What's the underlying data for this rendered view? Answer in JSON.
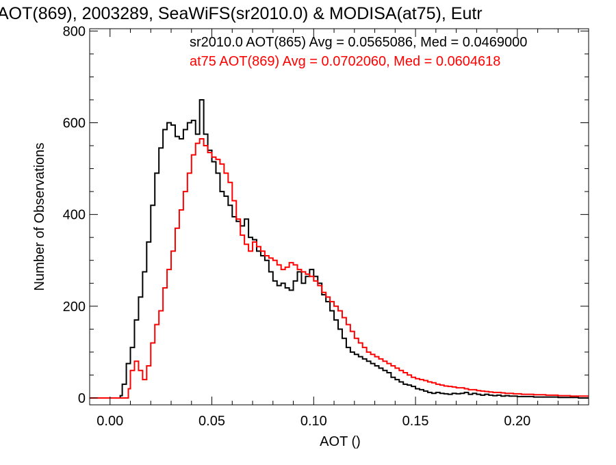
{
  "chart_data": {
    "type": "line",
    "title": "AOT(869), 2003289, SeaWiFS(sr2010.0) & MODISA(at75), Eutr",
    "xlabel": "AOT ()",
    "ylabel": "Number of Observations",
    "xlim": [
      -0.01,
      0.235
    ],
    "ylim": [
      -15,
      805
    ],
    "x_ticks": [
      0.0,
      0.05,
      0.1,
      0.15,
      0.2
    ],
    "x_tick_labels": [
      "0.00",
      "0.05",
      "0.10",
      "0.15",
      "0.20"
    ],
    "y_ticks": [
      0,
      200,
      400,
      600,
      800
    ],
    "y_tick_labels": [
      "0",
      "200",
      "400",
      "600",
      "800"
    ],
    "grid": false,
    "legend_placement": "top-right",
    "annotations": [
      {
        "text": "sr2010.0 AOT(865) Avg = 0.0565086, Med = 0.0469000",
        "color": "#000000"
      },
      {
        "text": "at75 AOT(869) Avg = 0.0702060, Med = 0.0604618",
        "color": "#ff0000"
      }
    ],
    "series": [
      {
        "color": "#000000",
        "step": "histogram",
        "points": [
          [
            -0.01,
            0
          ],
          [
            0.0,
            0
          ],
          [
            0.002,
            0
          ],
          [
            0.004,
            0
          ],
          [
            0.005,
            5
          ],
          [
            0.006,
            30
          ],
          [
            0.008,
            75
          ],
          [
            0.01,
            110
          ],
          [
            0.012,
            170
          ],
          [
            0.014,
            220
          ],
          [
            0.016,
            275
          ],
          [
            0.018,
            340
          ],
          [
            0.02,
            420
          ],
          [
            0.022,
            490
          ],
          [
            0.024,
            545
          ],
          [
            0.026,
            585
          ],
          [
            0.028,
            600
          ],
          [
            0.03,
            595
          ],
          [
            0.032,
            570
          ],
          [
            0.034,
            565
          ],
          [
            0.036,
            585
          ],
          [
            0.038,
            600
          ],
          [
            0.04,
            605
          ],
          [
            0.042,
            575
          ],
          [
            0.044,
            650
          ],
          [
            0.046,
            575
          ],
          [
            0.048,
            540
          ],
          [
            0.05,
            515
          ],
          [
            0.052,
            490
          ],
          [
            0.054,
            450
          ],
          [
            0.056,
            440
          ],
          [
            0.058,
            420
          ],
          [
            0.06,
            395
          ],
          [
            0.062,
            385
          ],
          [
            0.064,
            375
          ],
          [
            0.066,
            390
          ],
          [
            0.068,
            350
          ],
          [
            0.07,
            345
          ],
          [
            0.072,
            320
          ],
          [
            0.074,
            310
          ],
          [
            0.076,
            300
          ],
          [
            0.078,
            275
          ],
          [
            0.08,
            255
          ],
          [
            0.082,
            245
          ],
          [
            0.084,
            250
          ],
          [
            0.086,
            240
          ],
          [
            0.088,
            235
          ],
          [
            0.09,
            255
          ],
          [
            0.092,
            275
          ],
          [
            0.094,
            250
          ],
          [
            0.096,
            265
          ],
          [
            0.098,
            280
          ],
          [
            0.1,
            265
          ],
          [
            0.102,
            250
          ],
          [
            0.104,
            225
          ],
          [
            0.106,
            210
          ],
          [
            0.108,
            190
          ],
          [
            0.11,
            170
          ],
          [
            0.112,
            150
          ],
          [
            0.114,
            130
          ],
          [
            0.116,
            110
          ],
          [
            0.118,
            100
          ],
          [
            0.12,
            95
          ],
          [
            0.122,
            90
          ],
          [
            0.124,
            85
          ],
          [
            0.126,
            80
          ],
          [
            0.128,
            75
          ],
          [
            0.13,
            70
          ],
          [
            0.132,
            65
          ],
          [
            0.134,
            60
          ],
          [
            0.136,
            55
          ],
          [
            0.138,
            45
          ],
          [
            0.14,
            40
          ],
          [
            0.142,
            35
          ],
          [
            0.144,
            30
          ],
          [
            0.146,
            28
          ],
          [
            0.148,
            25
          ],
          [
            0.15,
            20
          ],
          [
            0.152,
            18
          ],
          [
            0.154,
            15
          ],
          [
            0.156,
            12
          ],
          [
            0.158,
            10
          ],
          [
            0.16,
            12
          ],
          [
            0.162,
            10
          ],
          [
            0.164,
            9
          ],
          [
            0.166,
            8
          ],
          [
            0.168,
            10
          ],
          [
            0.17,
            9
          ],
          [
            0.172,
            10
          ],
          [
            0.174,
            12
          ],
          [
            0.176,
            8
          ],
          [
            0.178,
            10
          ],
          [
            0.18,
            8
          ],
          [
            0.182,
            6
          ],
          [
            0.184,
            8
          ],
          [
            0.186,
            6
          ],
          [
            0.188,
            5
          ],
          [
            0.19,
            6
          ],
          [
            0.192,
            4
          ],
          [
            0.194,
            5
          ],
          [
            0.196,
            4
          ],
          [
            0.198,
            4
          ],
          [
            0.2,
            3
          ],
          [
            0.202,
            3
          ],
          [
            0.204,
            3
          ],
          [
            0.206,
            3
          ],
          [
            0.208,
            2
          ],
          [
            0.21,
            2
          ],
          [
            0.212,
            2
          ],
          [
            0.214,
            2
          ],
          [
            0.216,
            2
          ],
          [
            0.218,
            2
          ],
          [
            0.22,
            1
          ],
          [
            0.222,
            1
          ],
          [
            0.224,
            1
          ],
          [
            0.226,
            1
          ],
          [
            0.228,
            1
          ],
          [
            0.23,
            0
          ],
          [
            0.232,
            0
          ],
          [
            0.235,
            0
          ]
        ]
      },
      {
        "color": "#ff0000",
        "step": "histogram",
        "points": [
          [
            -0.01,
            0
          ],
          [
            0.006,
            0
          ],
          [
            0.008,
            0
          ],
          [
            0.009,
            20
          ],
          [
            0.01,
            60
          ],
          [
            0.012,
            80
          ],
          [
            0.014,
            60
          ],
          [
            0.016,
            40
          ],
          [
            0.018,
            70
          ],
          [
            0.02,
            120
          ],
          [
            0.022,
            160
          ],
          [
            0.024,
            190
          ],
          [
            0.026,
            240
          ],
          [
            0.028,
            280
          ],
          [
            0.03,
            320
          ],
          [
            0.032,
            370
          ],
          [
            0.034,
            410
          ],
          [
            0.036,
            450
          ],
          [
            0.038,
            490
          ],
          [
            0.04,
            530
          ],
          [
            0.042,
            555
          ],
          [
            0.044,
            565
          ],
          [
            0.046,
            550
          ],
          [
            0.048,
            535
          ],
          [
            0.05,
            525
          ],
          [
            0.052,
            520
          ],
          [
            0.054,
            510
          ],
          [
            0.056,
            490
          ],
          [
            0.058,
            470
          ],
          [
            0.06,
            430
          ],
          [
            0.062,
            390
          ],
          [
            0.064,
            355
          ],
          [
            0.066,
            335
          ],
          [
            0.068,
            320
          ],
          [
            0.07,
            340
          ],
          [
            0.072,
            330
          ],
          [
            0.074,
            320
          ],
          [
            0.076,
            310
          ],
          [
            0.078,
            305
          ],
          [
            0.08,
            300
          ],
          [
            0.082,
            290
          ],
          [
            0.084,
            280
          ],
          [
            0.086,
            285
          ],
          [
            0.088,
            295
          ],
          [
            0.09,
            290
          ],
          [
            0.092,
            280
          ],
          [
            0.094,
            275
          ],
          [
            0.096,
            270
          ],
          [
            0.098,
            265
          ],
          [
            0.1,
            255
          ],
          [
            0.102,
            245
          ],
          [
            0.104,
            230
          ],
          [
            0.106,
            220
          ],
          [
            0.108,
            210
          ],
          [
            0.11,
            200
          ],
          [
            0.112,
            190
          ],
          [
            0.114,
            175
          ],
          [
            0.116,
            160
          ],
          [
            0.118,
            145
          ],
          [
            0.12,
            130
          ],
          [
            0.122,
            120
          ],
          [
            0.124,
            110
          ],
          [
            0.126,
            100
          ],
          [
            0.128,
            95
          ],
          [
            0.13,
            90
          ],
          [
            0.132,
            85
          ],
          [
            0.134,
            80
          ],
          [
            0.136,
            75
          ],
          [
            0.138,
            70
          ],
          [
            0.14,
            65
          ],
          [
            0.142,
            60
          ],
          [
            0.144,
            55
          ],
          [
            0.146,
            50
          ],
          [
            0.148,
            45
          ],
          [
            0.15,
            42
          ],
          [
            0.152,
            40
          ],
          [
            0.154,
            38
          ],
          [
            0.156,
            35
          ],
          [
            0.158,
            33
          ],
          [
            0.16,
            30
          ],
          [
            0.162,
            28
          ],
          [
            0.164,
            26
          ],
          [
            0.166,
            25
          ],
          [
            0.168,
            24
          ],
          [
            0.17,
            22
          ],
          [
            0.172,
            22
          ],
          [
            0.174,
            20
          ],
          [
            0.176,
            18
          ],
          [
            0.178,
            18
          ],
          [
            0.18,
            16
          ],
          [
            0.182,
            15
          ],
          [
            0.184,
            14
          ],
          [
            0.186,
            13
          ],
          [
            0.188,
            12
          ],
          [
            0.19,
            12
          ],
          [
            0.192,
            11
          ],
          [
            0.194,
            10
          ],
          [
            0.196,
            10
          ],
          [
            0.198,
            9
          ],
          [
            0.2,
            9
          ],
          [
            0.202,
            8
          ],
          [
            0.204,
            8
          ],
          [
            0.206,
            8
          ],
          [
            0.208,
            7
          ],
          [
            0.21,
            7
          ],
          [
            0.212,
            7
          ],
          [
            0.214,
            6
          ],
          [
            0.216,
            6
          ],
          [
            0.218,
            6
          ],
          [
            0.22,
            5
          ],
          [
            0.222,
            5
          ],
          [
            0.224,
            5
          ],
          [
            0.226,
            4
          ],
          [
            0.228,
            4
          ],
          [
            0.23,
            4
          ],
          [
            0.232,
            4
          ],
          [
            0.235,
            4
          ]
        ]
      }
    ]
  }
}
